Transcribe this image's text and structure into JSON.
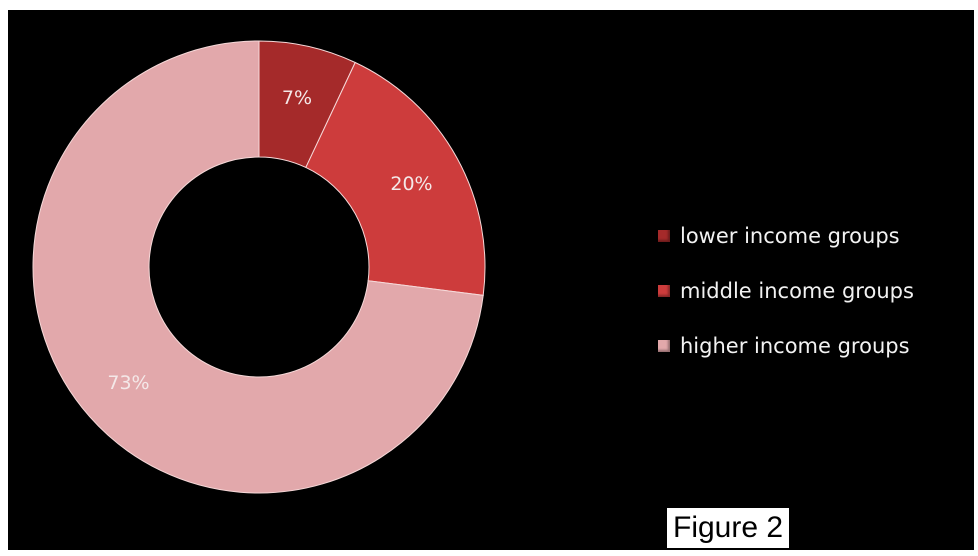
{
  "chart_data": {
    "type": "pie",
    "variant": "donut",
    "title": "",
    "categories": [
      "lower income groups",
      "middle income groups",
      "higher income groups"
    ],
    "values": [
      7,
      20,
      73
    ],
    "labels": [
      "7%",
      "20%",
      "73%"
    ],
    "colors": [
      "#a52a2a",
      "#cd3c3c",
      "#e2a8ab"
    ],
    "legend_position": "right"
  },
  "caption": "Figure 2"
}
